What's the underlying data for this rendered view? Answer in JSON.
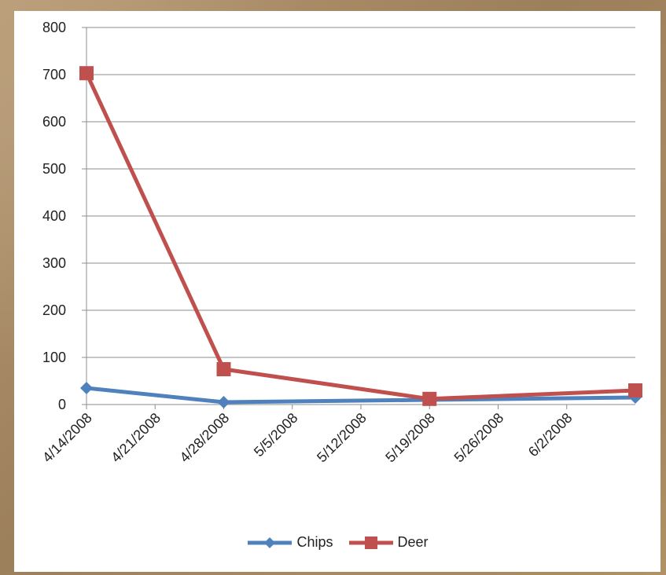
{
  "chart_data": {
    "type": "line",
    "title": "",
    "xlabel": "",
    "ylabel": "",
    "x_ticks": [
      "4/14/2008",
      "4/21/2008",
      "4/28/2008",
      "5/5/2008",
      "5/12/2008",
      "5/19/2008",
      "5/26/2008",
      "6/2/2008"
    ],
    "y_ticks": [
      0,
      100,
      200,
      300,
      400,
      500,
      600,
      700,
      800
    ],
    "ylim": [
      0,
      800
    ],
    "xlim": [
      "4/14/2008",
      "6/9/2008"
    ],
    "grid": "horizontal",
    "legend": "bottom",
    "series": [
      {
        "name": "Chips",
        "color": "#4f81bd",
        "marker": "diamond",
        "points": [
          {
            "x": "4/14/2008",
            "y": 35
          },
          {
            "x": "4/28/2008",
            "y": 5
          },
          {
            "x": "5/19/2008",
            "y": 10
          },
          {
            "x": "6/9/2008",
            "y": 15
          }
        ]
      },
      {
        "name": "Deer",
        "color": "#c0504d",
        "marker": "square",
        "points": [
          {
            "x": "4/14/2008",
            "y": 703
          },
          {
            "x": "4/28/2008",
            "y": 75
          },
          {
            "x": "5/19/2008",
            "y": 12
          },
          {
            "x": "6/9/2008",
            "y": 30
          }
        ]
      }
    ]
  }
}
